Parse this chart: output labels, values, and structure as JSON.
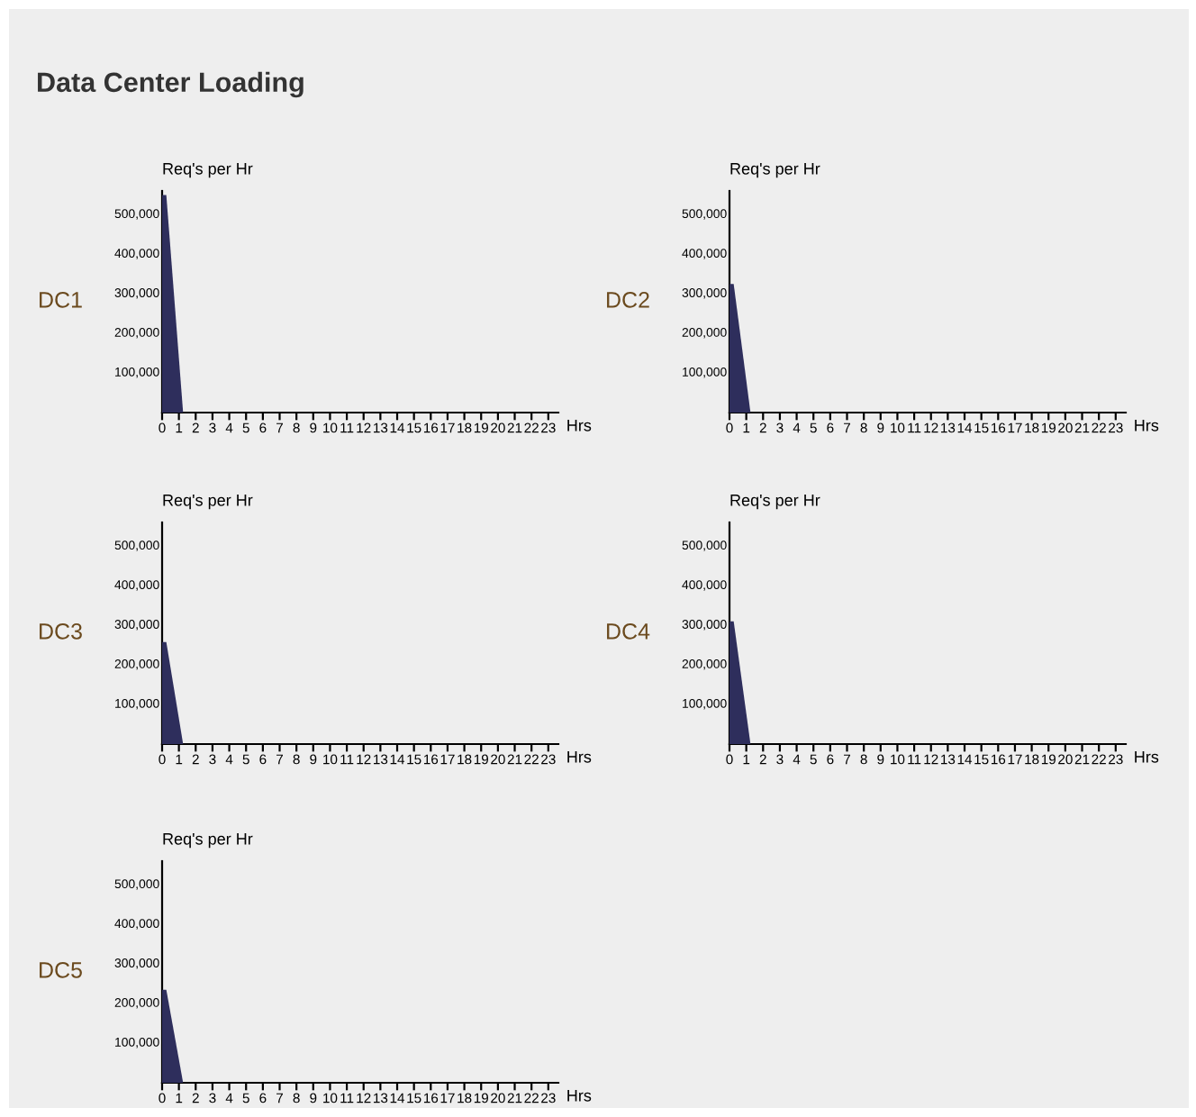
{
  "chart_data": [
    {
      "type": "other",
      "title": "Data Center Loading"
    },
    {
      "type": "area",
      "title": "DC1",
      "ylabel": "Req's per Hr",
      "xlabel": "Hrs",
      "x": [
        0,
        0.25,
        1.25
      ],
      "series": [
        {
          "color": "#2e2e5c",
          "values": [
            550000,
            550000,
            0
          ]
        }
      ],
      "xlim": [
        0,
        23.6
      ],
      "xticks": [
        0,
        1,
        2,
        3,
        4,
        5,
        6,
        7,
        8,
        9,
        10,
        11,
        12,
        13,
        14,
        15,
        16,
        17,
        18,
        19,
        20,
        21,
        22,
        23
      ],
      "ylim": [
        0,
        560000
      ],
      "yticks": [
        {
          "value": 100000,
          "label": "100,000"
        },
        {
          "value": 200000,
          "label": "200,000"
        },
        {
          "value": 300000,
          "label": "300,000"
        },
        {
          "value": 400000,
          "label": "400,000"
        },
        {
          "value": 500000,
          "label": "500,000"
        }
      ],
      "grid": false,
      "legend": false
    },
    {
      "type": "area",
      "title": "DC2",
      "ylabel": "Req's per Hr",
      "xlabel": "Hrs",
      "x": [
        0,
        0.25,
        1.25
      ],
      "series": [
        {
          "color": "#2e2e5c",
          "values": [
            325000,
            325000,
            0
          ]
        }
      ],
      "xlim": [
        0,
        23.6
      ],
      "xticks": [
        0,
        1,
        2,
        3,
        4,
        5,
        6,
        7,
        8,
        9,
        10,
        11,
        12,
        13,
        14,
        15,
        16,
        17,
        18,
        19,
        20,
        21,
        22,
        23
      ],
      "ylim": [
        0,
        560000
      ],
      "yticks": [
        {
          "value": 100000,
          "label": "100,000"
        },
        {
          "value": 200000,
          "label": "200,000"
        },
        {
          "value": 300000,
          "label": "300,000"
        },
        {
          "value": 400000,
          "label": "400,000"
        },
        {
          "value": 500000,
          "label": "500,000"
        }
      ],
      "grid": false,
      "legend": false
    },
    {
      "type": "area",
      "title": "DC3",
      "ylabel": "Req's per Hr",
      "xlabel": "Hrs",
      "x": [
        0,
        0.25,
        1.25
      ],
      "series": [
        {
          "color": "#2e2e5c",
          "values": [
            258000,
            258000,
            0
          ]
        }
      ],
      "xlim": [
        0,
        23.6
      ],
      "xticks": [
        0,
        1,
        2,
        3,
        4,
        5,
        6,
        7,
        8,
        9,
        10,
        11,
        12,
        13,
        14,
        15,
        16,
        17,
        18,
        19,
        20,
        21,
        22,
        23
      ],
      "ylim": [
        0,
        560000
      ],
      "yticks": [
        {
          "value": 100000,
          "label": "100,000"
        },
        {
          "value": 200000,
          "label": "200,000"
        },
        {
          "value": 300000,
          "label": "300,000"
        },
        {
          "value": 400000,
          "label": "400,000"
        },
        {
          "value": 500000,
          "label": "500,000"
        }
      ],
      "grid": false,
      "legend": false
    },
    {
      "type": "area",
      "title": "DC4",
      "ylabel": "Req's per Hr",
      "xlabel": "Hrs",
      "x": [
        0,
        0.25,
        1.25
      ],
      "series": [
        {
          "color": "#2e2e5c",
          "values": [
            310000,
            310000,
            0
          ]
        }
      ],
      "xlim": [
        0,
        23.6
      ],
      "xticks": [
        0,
        1,
        2,
        3,
        4,
        5,
        6,
        7,
        8,
        9,
        10,
        11,
        12,
        13,
        14,
        15,
        16,
        17,
        18,
        19,
        20,
        21,
        22,
        23
      ],
      "ylim": [
        0,
        560000
      ],
      "yticks": [
        {
          "value": 100000,
          "label": "100,000"
        },
        {
          "value": 200000,
          "label": "200,000"
        },
        {
          "value": 300000,
          "label": "300,000"
        },
        {
          "value": 400000,
          "label": "400,000"
        },
        {
          "value": 500000,
          "label": "500,000"
        }
      ],
      "grid": false,
      "legend": false
    },
    {
      "type": "area",
      "title": "DC5",
      "ylabel": "Req's per Hr",
      "xlabel": "Hrs",
      "x": [
        0,
        0.25,
        1.25
      ],
      "series": [
        {
          "color": "#2e2e5c",
          "values": [
            235000,
            235000,
            0
          ]
        }
      ],
      "xlim": [
        0,
        23.6
      ],
      "xticks": [
        0,
        1,
        2,
        3,
        4,
        5,
        6,
        7,
        8,
        9,
        10,
        11,
        12,
        13,
        14,
        15,
        16,
        17,
        18,
        19,
        20,
        21,
        22,
        23
      ],
      "ylim": [
        0,
        560000
      ],
      "yticks": [
        {
          "value": 100000,
          "label": "100,000"
        },
        {
          "value": 200000,
          "label": "200,000"
        },
        {
          "value": 300000,
          "label": "300,000"
        },
        {
          "value": 400000,
          "label": "400,000"
        },
        {
          "value": 500000,
          "label": "500,000"
        }
      ],
      "grid": false,
      "legend": false
    }
  ]
}
